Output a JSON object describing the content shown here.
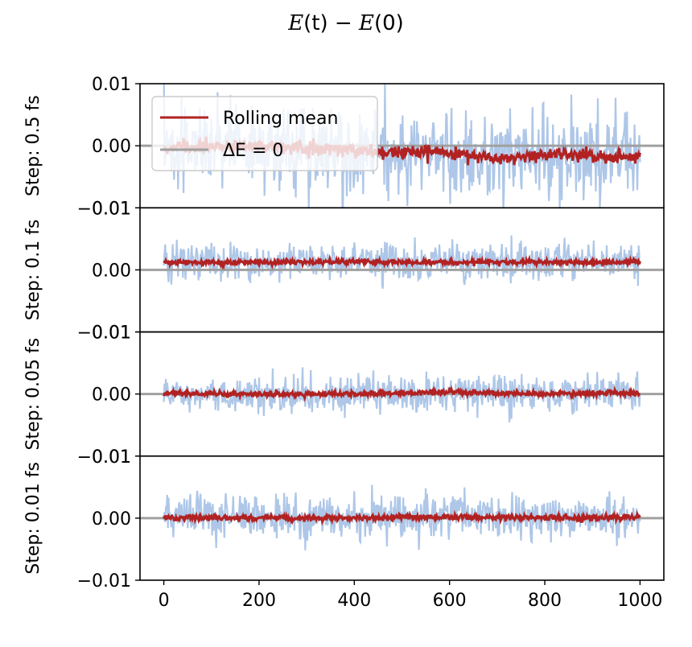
{
  "title_math": {
    "lhs": "E",
    "lhs_arg": "(t)",
    "op": " − ",
    "rhs": "E",
    "rhs_arg": "(0)"
  },
  "chart_data": {
    "type": "line",
    "title": "E(t) − E(0)",
    "xlim": [
      -50,
      1050
    ],
    "x_range": [
      0,
      1000
    ],
    "x_ticks": [
      0,
      200,
      400,
      600,
      800,
      1000
    ],
    "ylim": [
      -0.01,
      0.01
    ],
    "y_ticks": [
      -0.01,
      0.0,
      0.01
    ],
    "y_tick_labels": [
      "−0.01",
      "0.00",
      "0.01"
    ],
    "legend": {
      "placement": "upper-left",
      "panel": 0,
      "entries": [
        "Rolling mean",
        "ΔE = 0"
      ]
    },
    "colors": {
      "raw": "#aec7e8",
      "rolling": "#b22222",
      "reference": "#a0a0a0"
    },
    "panels": [
      {
        "ylabel": "Step: 0.5 fs",
        "raw_amplitude": 0.0085,
        "rolling_mean_approx": [
          [
            0,
            -0.0003
          ],
          [
            100,
            -0.0002
          ],
          [
            200,
            0.0
          ],
          [
            300,
            -0.0003
          ],
          [
            400,
            -0.0007
          ],
          [
            500,
            -0.0013
          ],
          [
            550,
            -0.0008
          ],
          [
            650,
            -0.0016
          ],
          [
            700,
            -0.0022
          ],
          [
            800,
            -0.0013
          ],
          [
            900,
            -0.0016
          ],
          [
            1000,
            -0.0018
          ]
        ],
        "reference": 0.0
      },
      {
        "ylabel": "Step: 0.1 fs",
        "raw_amplitude": 0.0035,
        "rolling_mean_approx": [
          [
            0,
            0.0012
          ],
          [
            200,
            0.0012
          ],
          [
            400,
            0.0013
          ],
          [
            600,
            0.0012
          ],
          [
            800,
            0.0013
          ],
          [
            1000,
            0.0012
          ]
        ],
        "reference": 0.0
      },
      {
        "ylabel": "Step: 0.05 fs",
        "raw_amplitude": 0.0035,
        "rolling_mean_approx": [
          [
            0,
            0.0001
          ],
          [
            200,
            0.0
          ],
          [
            400,
            0.0
          ],
          [
            600,
            0.0003
          ],
          [
            800,
            0.0
          ],
          [
            1000,
            0.0002
          ]
        ],
        "reference": 0.0
      },
      {
        "ylabel": "Step: 0.01 fs",
        "raw_amplitude": 0.0042,
        "rolling_mean_approx": [
          [
            0,
            0.0001
          ],
          [
            200,
            0.0
          ],
          [
            400,
            0.0
          ],
          [
            600,
            0.0002
          ],
          [
            800,
            0.0
          ],
          [
            1000,
            0.0001
          ]
        ],
        "reference": 0.0
      }
    ]
  }
}
